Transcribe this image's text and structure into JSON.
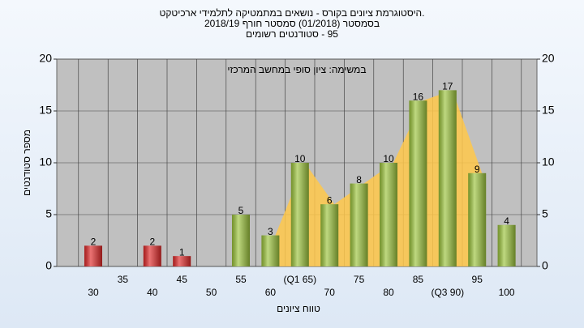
{
  "chart_data": {
    "type": "bar",
    "title": ".היסטוגרמת ציונים בקורס - נושאים במתמטיקה לתלמידי ארכיטקט",
    "subtitle_lines": [
      "בסמסטר  (01/2018)  סמסטר חורף 2018/19",
      "95 - סטודנטים רשומים"
    ],
    "annotation": "במשימה: ציון סופי במחשב המרכזי",
    "x_label": "טווח ציונים",
    "y_label": "מספר סטודנטים",
    "categories": [
      "30",
      "35",
      "40",
      "45",
      "50",
      "55",
      "60",
      "(Q1 65)",
      "70",
      "75",
      "80",
      "85",
      "(Q3 90)",
      "95",
      "100"
    ],
    "values": [
      2,
      0,
      2,
      1,
      0,
      5,
      3,
      10,
      6,
      8,
      10,
      16,
      17,
      9,
      4
    ],
    "colors": [
      "#e02828",
      "#e02828",
      "#e02828",
      "#e02828",
      "#e02828",
      "#9cc43c",
      "#9cc43c",
      "#9cc43c",
      "#9cc43c",
      "#9cc43c",
      "#9cc43c",
      "#9cc43c",
      "#9cc43c",
      "#9cc43c",
      "#9cc43c"
    ],
    "highlight_color": "#ffc84a",
    "ylim": [
      0,
      20
    ],
    "yticks": [
      0,
      5,
      10,
      15,
      20
    ],
    "y2lim": [
      0,
      20
    ],
    "y2ticks": [
      0,
      5,
      10,
      15,
      20
    ],
    "grid": true
  }
}
